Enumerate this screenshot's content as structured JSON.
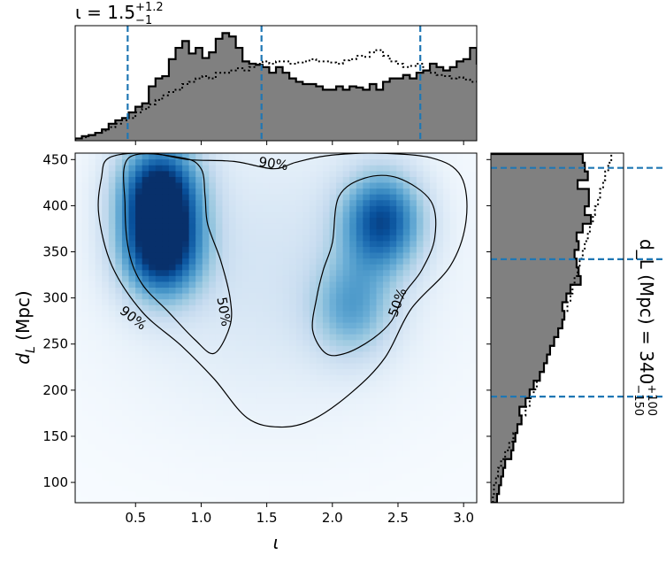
{
  "chart_data": [
    {
      "panel": "joint",
      "type": "heatmap",
      "xlabel": "ι",
      "ylabel": "d_L (Mpc)",
      "xlim": [
        0.04,
        3.1
      ],
      "ylim": [
        78,
        457
      ],
      "x_ticks": [
        0.5,
        1.0,
        1.5,
        2.0,
        2.5,
        3.0
      ],
      "x_tick_labels": [
        "0.5",
        "1.0",
        "1.5",
        "2.0",
        "2.5",
        "3.0"
      ],
      "y_ticks": [
        100,
        150,
        200,
        250,
        300,
        350,
        400,
        450
      ],
      "y_tick_labels": [
        "100",
        "150",
        "200",
        "250",
        "300",
        "350",
        "400",
        "450"
      ],
      "colormap": "Blues",
      "density_peaks": [
        {
          "x": 0.68,
          "y": 418,
          "weight": 1.0
        },
        {
          "x": 0.7,
          "y": 352,
          "weight": 1.0
        },
        {
          "x": 2.38,
          "y": 384,
          "weight": 0.85
        },
        {
          "x": 2.15,
          "y": 290,
          "weight": 0.45
        }
      ],
      "contours": [
        {
          "label": "90%",
          "label_positions": [
            {
              "x": 1.55,
              "y": 445
            },
            {
              "x": 0.48,
              "y": 278
            }
          ],
          "points": [
            [
              0.3,
              452
            ],
            [
              0.6,
              457
            ],
            [
              0.9,
              450
            ],
            [
              1.25,
              448
            ],
            [
              1.55,
              440
            ],
            [
              1.72,
              447
            ],
            [
              1.95,
              454
            ],
            [
              2.3,
              457
            ],
            [
              2.75,
              452
            ],
            [
              2.98,
              432
            ],
            [
              3.02,
              385
            ],
            [
              2.9,
              335
            ],
            [
              2.6,
              288
            ],
            [
              2.4,
              235
            ],
            [
              2.15,
              198
            ],
            [
              1.85,
              168
            ],
            [
              1.6,
              160
            ],
            [
              1.35,
              170
            ],
            [
              1.1,
              212
            ],
            [
              0.85,
              248
            ],
            [
              0.55,
              285
            ],
            [
              0.32,
              335
            ],
            [
              0.22,
              390
            ],
            [
              0.24,
              430
            ],
            [
              0.3,
              452
            ]
          ]
        },
        {
          "label": "50%",
          "label_positions": [
            {
              "x": 1.17,
              "y": 285
            },
            {
              "x": 2.5,
              "y": 295
            }
          ],
          "points": [
            [
              0.45,
              452
            ],
            [
              0.85,
              452
            ],
            [
              1.0,
              440
            ],
            [
              1.03,
              410
            ],
            [
              1.05,
              380
            ],
            [
              1.15,
              340
            ],
            [
              1.22,
              300
            ],
            [
              1.22,
              270
            ],
            [
              1.1,
              240
            ],
            [
              0.95,
              255
            ],
            [
              0.75,
              285
            ],
            [
              0.55,
              315
            ],
            [
              0.45,
              350
            ],
            [
              0.42,
              400
            ],
            [
              0.45,
              452
            ]
          ]
        },
        {
          "label": "50%",
          "points": [
            [
              2.05,
              410
            ],
            [
              2.25,
              430
            ],
            [
              2.5,
              430
            ],
            [
              2.75,
              405
            ],
            [
              2.78,
              365
            ],
            [
              2.68,
              330
            ],
            [
              2.55,
              305
            ],
            [
              2.45,
              275
            ],
            [
              2.3,
              255
            ],
            [
              2.1,
              240
            ],
            [
              1.95,
              240
            ],
            [
              1.85,
              265
            ],
            [
              1.88,
              300
            ],
            [
              1.93,
              330
            ],
            [
              2.0,
              360
            ],
            [
              2.05,
              410
            ]
          ]
        }
      ]
    },
    {
      "panel": "iota-marginal",
      "type": "histogram",
      "title": "ι = 1.5",
      "title_sup": "+1.2",
      "title_sub": "−1",
      "orientation": "vertical",
      "bin_edges_start": 0.04,
      "bin_width": 0.051,
      "values": [
        0.02,
        0.04,
        0.05,
        0.07,
        0.1,
        0.15,
        0.18,
        0.2,
        0.25,
        0.3,
        0.33,
        0.48,
        0.55,
        0.57,
        0.72,
        0.82,
        0.88,
        0.77,
        0.82,
        0.73,
        0.78,
        0.9,
        0.95,
        0.92,
        0.82,
        0.7,
        0.68,
        0.67,
        0.65,
        0.6,
        0.65,
        0.6,
        0.55,
        0.52,
        0.5,
        0.5,
        0.48,
        0.45,
        0.45,
        0.48,
        0.45,
        0.48,
        0.47,
        0.45,
        0.5,
        0.45,
        0.52,
        0.55,
        0.55,
        0.58,
        0.55,
        0.6,
        0.62,
        0.68,
        0.65,
        0.62,
        0.65,
        0.7,
        0.72,
        0.82,
        0.68,
        0.82,
        0.75,
        0.65,
        0.62,
        0.52,
        0.45,
        0.38,
        0.32,
        0.28,
        0.25,
        0.22,
        0.2,
        0.18,
        0.15,
        0.12,
        0.1,
        0.08,
        0.06,
        0.05
      ],
      "prior_values": [
        0.02,
        0.03,
        0.05,
        0.07,
        0.09,
        0.12,
        0.15,
        0.18,
        0.2,
        0.25,
        0.28,
        0.32,
        0.36,
        0.4,
        0.43,
        0.45,
        0.5,
        0.52,
        0.55,
        0.57,
        0.55,
        0.6,
        0.6,
        0.62,
        0.64,
        0.62,
        0.65,
        0.68,
        0.7,
        0.68,
        0.7,
        0.7,
        0.68,
        0.69,
        0.7,
        0.72,
        0.7,
        0.7,
        0.69,
        0.68,
        0.71,
        0.72,
        0.75,
        0.74,
        0.78,
        0.8,
        0.75,
        0.7,
        0.68,
        0.65,
        0.66,
        0.68,
        0.62,
        0.6,
        0.58,
        0.57,
        0.55,
        0.56,
        0.54,
        0.52,
        0.55,
        0.54,
        0.52,
        0.5,
        0.48,
        0.45,
        0.4,
        0.38,
        0.35,
        0.3,
        0.27,
        0.25,
        0.2,
        0.18,
        0.15,
        0.12,
        0.1,
        0.08,
        0.06,
        0.05
      ],
      "ylim": [
        0,
        1.0
      ],
      "quantile_lines": [
        0.44,
        1.46,
        2.67
      ]
    },
    {
      "panel": "dL-marginal",
      "type": "histogram",
      "orientation": "horizontal",
      "label": "d_L (Mpc) = 340",
      "label_sup": "+100",
      "label_sub": "−150",
      "bin_edges_start": 78,
      "bin_width": 9.45,
      "values": [
        0.06,
        0.08,
        0.1,
        0.12,
        0.14,
        0.2,
        0.22,
        0.24,
        0.26,
        0.3,
        0.28,
        0.34,
        0.38,
        0.42,
        0.48,
        0.52,
        0.55,
        0.58,
        0.62,
        0.66,
        0.7,
        0.72,
        0.7,
        0.74,
        0.78,
        0.88,
        0.86,
        0.84,
        0.82,
        0.86,
        0.84,
        0.9,
        0.98,
        0.92,
        0.96,
        0.96,
        0.85,
        0.95,
        0.92,
        0.9
      ],
      "prior_values": [
        0.02,
        0.03,
        0.05,
        0.07,
        0.1,
        0.14,
        0.18,
        0.22,
        0.26,
        0.3,
        0.34,
        0.38,
        0.42,
        0.45,
        0.48,
        0.52,
        0.55,
        0.58,
        0.62,
        0.66,
        0.7,
        0.72,
        0.75,
        0.78,
        0.8,
        0.82,
        0.85,
        0.87,
        0.9,
        0.92,
        0.95,
        0.97,
        1.0,
        1.02,
        1.05,
        1.07,
        1.1,
        1.12,
        1.15,
        1.18
      ],
      "xlim": [
        0,
        1.3
      ],
      "quantile_lines": [
        193,
        342,
        441
      ]
    }
  ],
  "colors": {
    "histogram_fill": "#808080",
    "histogram_edge": "#000000",
    "quantile_line": "#1f77b4",
    "contour": "#000000",
    "colormap_low": "#f7fbff",
    "colormap_high": "#08306b"
  }
}
